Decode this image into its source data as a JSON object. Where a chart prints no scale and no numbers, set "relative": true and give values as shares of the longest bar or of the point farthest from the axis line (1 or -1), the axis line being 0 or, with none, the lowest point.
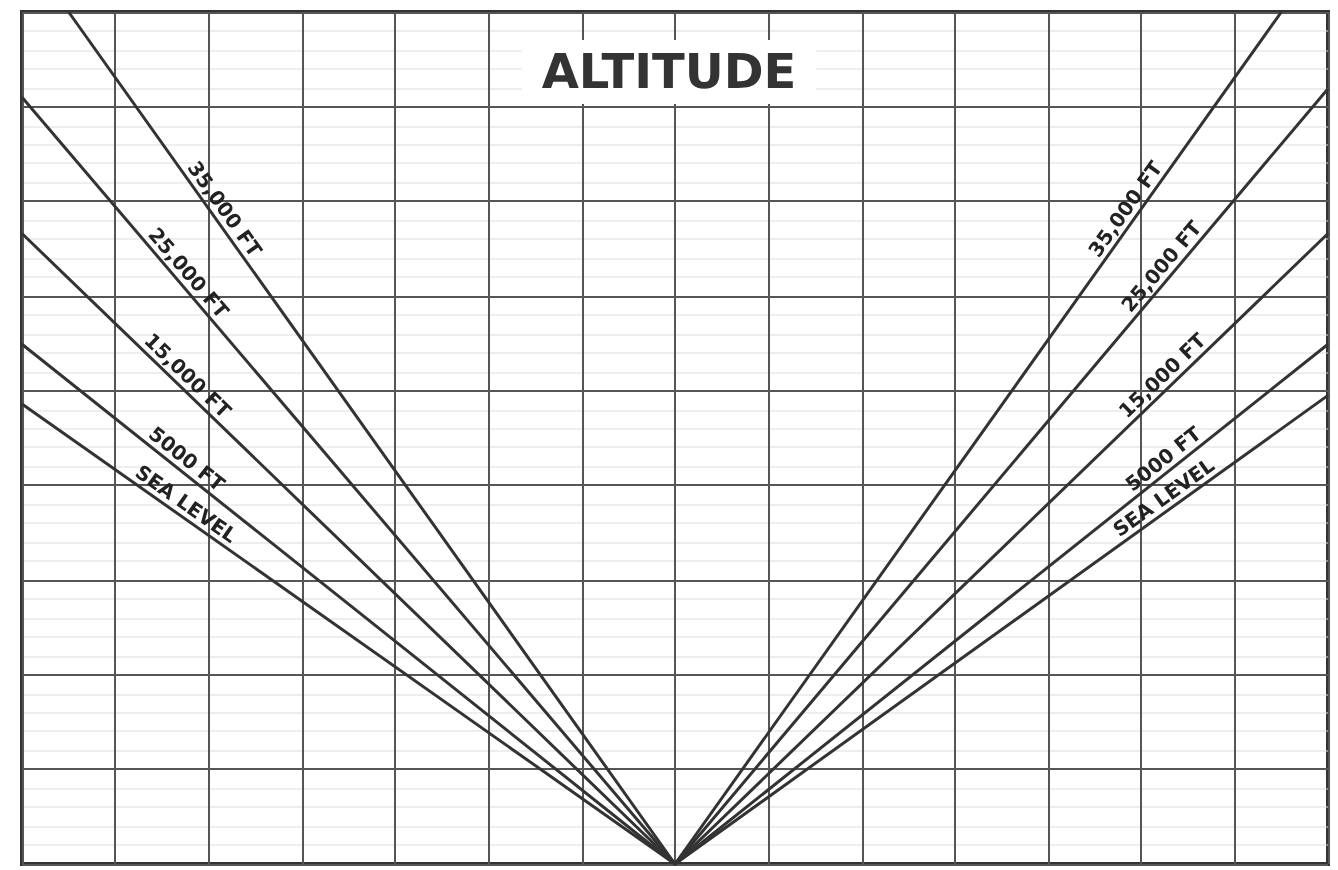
{
  "chart_data": {
    "type": "line",
    "title": "ALTITUDE",
    "relative": true,
    "grid": true,
    "categories": [
      null,
      null,
      null,
      null,
      null,
      null,
      null,
      null,
      null,
      null,
      null,
      null,
      null,
      null,
      null,
      null,
      null,
      null,
      null,
      null,
      null,
      null,
      null,
      null,
      null,
      null,
      null,
      null,
      null
    ],
    "series": [
      {
        "name": "SEA LEVEL",
        "color": "#333333",
        "values": [
          0.54,
          null,
          null,
          null,
          null,
          null,
          null,
          null,
          null,
          null,
          null,
          null,
          null,
          null,
          0,
          null,
          null,
          null,
          null,
          null,
          null,
          null,
          null,
          null,
          null,
          null,
          null,
          null,
          0.55
        ]
      },
      {
        "name": "5000 FT",
        "color": "#333333",
        "values": [
          0.61,
          null,
          null,
          null,
          null,
          null,
          null,
          null,
          null,
          null,
          null,
          null,
          null,
          null,
          0,
          null,
          null,
          null,
          null,
          null,
          null,
          null,
          null,
          null,
          null,
          null,
          null,
          null,
          0.61
        ]
      },
      {
        "name": "15,000 FT",
        "color": "#333333",
        "values": [
          0.74,
          null,
          null,
          null,
          null,
          null,
          null,
          null,
          null,
          null,
          null,
          null,
          null,
          null,
          0,
          null,
          null,
          null,
          null,
          null,
          null,
          null,
          null,
          null,
          null,
          null,
          null,
          null,
          0.74
        ]
      },
      {
        "name": "25,000 FT",
        "color": "#333333",
        "values": [
          0.9,
          null,
          null,
          null,
          null,
          null,
          null,
          null,
          null,
          null,
          null,
          null,
          null,
          null,
          0,
          null,
          null,
          null,
          null,
          null,
          null,
          null,
          null,
          null,
          null,
          null,
          null,
          null,
          0.91
        ]
      },
      {
        "name": "35,000 FT",
        "color": "#333333",
        "values": [
          null,
          1,
          null,
          null,
          null,
          null,
          null,
          null,
          null,
          null,
          null,
          null,
          null,
          null,
          0,
          null,
          null,
          null,
          null,
          null,
          null,
          null,
          null,
          null,
          null,
          null,
          null,
          1,
          null
        ]
      }
    ]
  }
}
